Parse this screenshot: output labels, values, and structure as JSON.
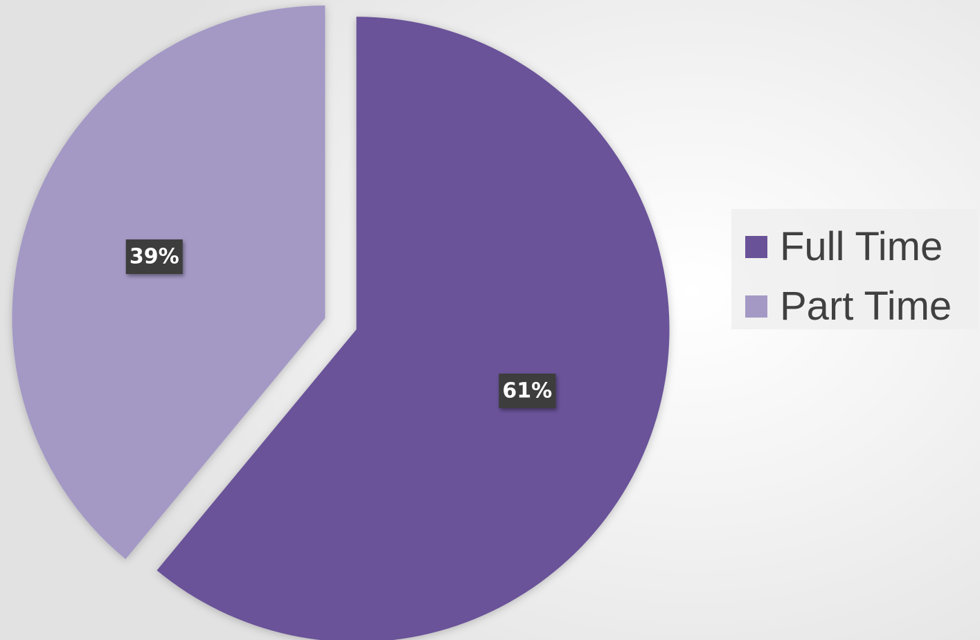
{
  "chart_data": {
    "type": "pie",
    "title": "",
    "slices": [
      {
        "name": "Full Time",
        "value": 61,
        "label": "61%",
        "color": "#6a5299",
        "exploded": true
      },
      {
        "name": "Part Time",
        "value": 39,
        "label": "39%",
        "color": "#a499c5",
        "exploded": true
      }
    ],
    "legend": {
      "position": "right",
      "items": [
        "Full Time",
        "Part Time"
      ]
    },
    "start_angle_deg": 0,
    "direction": "clockwise"
  },
  "legend": {
    "items": [
      {
        "label": "Full Time",
        "color": "#6a5299"
      },
      {
        "label": "Part Time",
        "color": "#a499c5"
      }
    ]
  }
}
